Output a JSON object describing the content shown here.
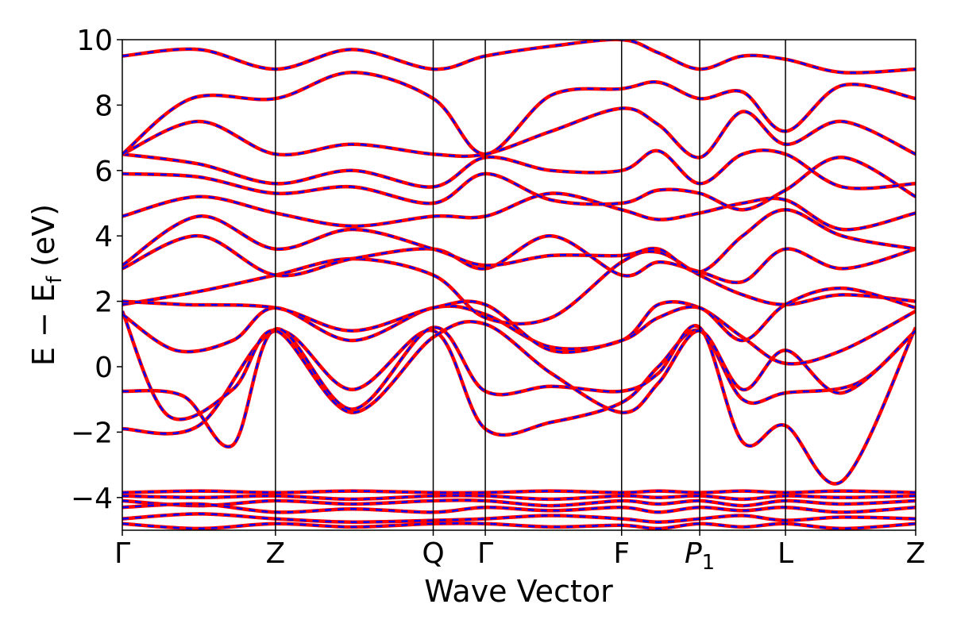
{
  "chart_data": {
    "type": "line",
    "title": "",
    "xlabel": "Wave Vector",
    "ylabel": "E − E_f (eV)",
    "ylabel_parts": {
      "main": "E − E",
      "sub": "f",
      "unit": " (eV)"
    },
    "ylim": [
      -5,
      10
    ],
    "yticks": [
      -4,
      -2,
      0,
      2,
      4,
      6,
      8,
      10
    ],
    "ytick_labels": [
      "−4",
      "−2",
      "0",
      "2",
      "4",
      "6",
      "8",
      "10"
    ],
    "grid": false,
    "legend": "none",
    "high_symmetry_points": [
      {
        "label": "Γ",
        "x": 0.0
      },
      {
        "label": "Z",
        "x": 1.0
      },
      {
        "label": "Q",
        "x": 2.03
      },
      {
        "label": "Γ",
        "x": 2.37
      },
      {
        "label": "F",
        "x": 3.26
      },
      {
        "label": "P1",
        "label_main": "P",
        "label_sub": "1",
        "x": 3.77
      },
      {
        "label": "L",
        "x": 4.33
      },
      {
        "label": "Z",
        "x": 5.18
      }
    ],
    "series_style": [
      {
        "color": "#ff0000",
        "stroke": "solid"
      },
      {
        "color": "#0000ff",
        "stroke": "dashed"
      }
    ],
    "bands": [
      [
        [
          0,
          -1.9
        ],
        [
          0.5,
          -1.8
        ],
        [
          1.0,
          1.1
        ],
        [
          1.5,
          -0.7
        ],
        [
          2.03,
          1.1
        ],
        [
          2.37,
          -1.9
        ],
        [
          2.8,
          -1.7
        ],
        [
          3.26,
          -1.1
        ],
        [
          3.5,
          0.0
        ],
        [
          3.77,
          1.1
        ],
        [
          4.05,
          -1.0
        ],
        [
          4.33,
          -0.8
        ],
        [
          4.8,
          -0.5
        ],
        [
          5.18,
          1.1
        ]
      ],
      [
        [
          0,
          -0.75
        ],
        [
          0.4,
          -0.9
        ],
        [
          0.72,
          -2.4
        ],
        [
          1.0,
          1.15
        ],
        [
          1.5,
          -1.3
        ],
        [
          2.03,
          1.2
        ],
        [
          2.37,
          -0.75
        ],
        [
          2.8,
          -0.6
        ],
        [
          3.26,
          -0.75
        ],
        [
          3.5,
          -0.2
        ],
        [
          3.77,
          1.2
        ],
        [
          4.05,
          -2.3
        ],
        [
          4.33,
          -1.8
        ],
        [
          4.7,
          -3.5
        ],
        [
          5.18,
          1.2
        ]
      ],
      [
        [
          0,
          1.7
        ],
        [
          0.3,
          -1.5
        ],
        [
          0.72,
          -0.7
        ],
        [
          1.0,
          1.1
        ],
        [
          1.5,
          -1.4
        ],
        [
          2.03,
          0.9
        ],
        [
          2.37,
          1.3
        ],
        [
          2.8,
          -0.2
        ],
        [
          3.26,
          -1.4
        ],
        [
          3.5,
          -0.5
        ],
        [
          3.77,
          1.1
        ],
        [
          4.05,
          -0.7
        ],
        [
          4.33,
          0.5
        ],
        [
          4.7,
          -0.8
        ],
        [
          5.18,
          1.1
        ]
      ],
      [
        [
          0,
          1.6
        ],
        [
          0.35,
          0.5
        ],
        [
          0.72,
          0.8
        ],
        [
          1.0,
          1.8
        ],
        [
          1.5,
          0.8
        ],
        [
          2.03,
          1.8
        ],
        [
          2.37,
          1.6
        ],
        [
          2.8,
          0.6
        ],
        [
          3.26,
          0.8
        ],
        [
          3.5,
          1.9
        ],
        [
          3.77,
          1.8
        ],
        [
          4.05,
          0.9
        ],
        [
          4.33,
          0.1
        ],
        [
          4.7,
          0.5
        ],
        [
          5.18,
          1.7
        ]
      ],
      [
        [
          0,
          1.9
        ],
        [
          0.5,
          2.3
        ],
        [
          1.0,
          2.8
        ],
        [
          1.5,
          3.3
        ],
        [
          2.03,
          2.8
        ],
        [
          2.37,
          1.5
        ],
        [
          2.8,
          1.5
        ],
        [
          3.26,
          3.2
        ],
        [
          3.5,
          3.5
        ],
        [
          3.77,
          2.8
        ],
        [
          4.05,
          2.2
        ],
        [
          4.33,
          1.9
        ],
        [
          4.7,
          2.2
        ],
        [
          5.18,
          2.0
        ]
      ],
      [
        [
          0,
          2.0
        ],
        [
          0.4,
          1.9
        ],
        [
          1.0,
          1.8
        ],
        [
          1.5,
          1.1
        ],
        [
          2.03,
          1.8
        ],
        [
          2.37,
          1.9
        ],
        [
          2.8,
          0.5
        ],
        [
          3.26,
          0.8
        ],
        [
          3.5,
          1.5
        ],
        [
          3.77,
          1.8
        ],
        [
          4.05,
          0.8
        ],
        [
          4.33,
          1.9
        ],
        [
          4.7,
          2.4
        ],
        [
          5.18,
          1.8
        ]
      ],
      [
        [
          0,
          3.0
        ],
        [
          0.5,
          4.0
        ],
        [
          1.0,
          2.8
        ],
        [
          1.5,
          3.3
        ],
        [
          2.03,
          3.6
        ],
        [
          2.37,
          3.0
        ],
        [
          2.8,
          4.0
        ],
        [
          3.26,
          2.8
        ],
        [
          3.5,
          3.2
        ],
        [
          3.77,
          2.9
        ],
        [
          4.05,
          2.6
        ],
        [
          4.33,
          3.6
        ],
        [
          4.7,
          3.0
        ],
        [
          5.18,
          3.6
        ]
      ],
      [
        [
          0,
          3.1
        ],
        [
          0.5,
          4.6
        ],
        [
          1.0,
          3.6
        ],
        [
          1.5,
          4.2
        ],
        [
          2.03,
          3.6
        ],
        [
          2.37,
          3.1
        ],
        [
          2.8,
          3.4
        ],
        [
          3.26,
          3.4
        ],
        [
          3.5,
          3.6
        ],
        [
          3.77,
          2.9
        ],
        [
          4.05,
          4.0
        ],
        [
          4.33,
          4.8
        ],
        [
          4.7,
          4.0
        ],
        [
          5.18,
          3.6
        ]
      ],
      [
        [
          0,
          4.6
        ],
        [
          0.5,
          5.2
        ],
        [
          1.0,
          4.7
        ],
        [
          1.5,
          4.3
        ],
        [
          2.03,
          4.6
        ],
        [
          2.37,
          4.6
        ],
        [
          2.8,
          5.3
        ],
        [
          3.26,
          4.8
        ],
        [
          3.5,
          4.5
        ],
        [
          3.77,
          4.7
        ],
        [
          4.05,
          5.0
        ],
        [
          4.33,
          5.1
        ],
        [
          4.7,
          4.2
        ],
        [
          5.18,
          4.7
        ]
      ],
      [
        [
          0,
          5.9
        ],
        [
          0.5,
          5.8
        ],
        [
          1.0,
          5.3
        ],
        [
          1.5,
          5.5
        ],
        [
          2.03,
          5.0
        ],
        [
          2.37,
          5.9
        ],
        [
          2.8,
          5.1
        ],
        [
          3.26,
          5.0
        ],
        [
          3.5,
          5.4
        ],
        [
          3.77,
          5.3
        ],
        [
          4.05,
          4.8
        ],
        [
          4.33,
          5.4
        ],
        [
          4.7,
          6.4
        ],
        [
          5.18,
          5.2
        ]
      ],
      [
        [
          0,
          6.5
        ],
        [
          0.5,
          6.2
        ],
        [
          1.0,
          5.6
        ],
        [
          1.5,
          6.0
        ],
        [
          2.03,
          5.5
        ],
        [
          2.37,
          6.4
        ],
        [
          2.8,
          6.0
        ],
        [
          3.26,
          6.0
        ],
        [
          3.5,
          6.6
        ],
        [
          3.77,
          5.6
        ],
        [
          4.05,
          6.5
        ],
        [
          4.33,
          6.5
        ],
        [
          4.7,
          5.5
        ],
        [
          5.18,
          5.6
        ]
      ],
      [
        [
          0,
          6.5
        ],
        [
          0.5,
          7.5
        ],
        [
          1.0,
          6.5
        ],
        [
          1.5,
          6.8
        ],
        [
          2.03,
          6.5
        ],
        [
          2.37,
          6.5
        ],
        [
          2.8,
          7.2
        ],
        [
          3.26,
          7.9
        ],
        [
          3.5,
          7.4
        ],
        [
          3.77,
          6.4
        ],
        [
          4.05,
          7.8
        ],
        [
          4.33,
          6.8
        ],
        [
          4.7,
          7.5
        ],
        [
          5.18,
          6.5
        ]
      ],
      [
        [
          0,
          6.5
        ],
        [
          0.45,
          8.2
        ],
        [
          1.0,
          8.2
        ],
        [
          1.5,
          9.0
        ],
        [
          2.03,
          8.2
        ],
        [
          2.37,
          6.5
        ],
        [
          2.8,
          8.3
        ],
        [
          3.26,
          8.5
        ],
        [
          3.5,
          8.7
        ],
        [
          3.77,
          8.2
        ],
        [
          4.05,
          8.4
        ],
        [
          4.33,
          7.2
        ],
        [
          4.7,
          8.6
        ],
        [
          5.18,
          8.2
        ]
      ],
      [
        [
          0,
          9.5
        ],
        [
          0.5,
          9.7
        ],
        [
          1.0,
          9.1
        ],
        [
          1.5,
          9.7
        ],
        [
          2.03,
          9.1
        ],
        [
          2.37,
          9.5
        ],
        [
          2.8,
          9.8
        ],
        [
          3.26,
          10.0
        ],
        [
          3.5,
          9.6
        ],
        [
          3.77,
          9.1
        ],
        [
          4.05,
          9.5
        ],
        [
          4.33,
          9.4
        ],
        [
          4.7,
          9.0
        ],
        [
          5.18,
          9.1
        ]
      ],
      [
        [
          0,
          -3.85
        ],
        [
          0.5,
          -3.8
        ],
        [
          1.0,
          -3.85
        ],
        [
          1.5,
          -3.8
        ],
        [
          2.03,
          -3.85
        ],
        [
          2.37,
          -3.85
        ],
        [
          2.8,
          -3.8
        ],
        [
          3.26,
          -3.85
        ],
        [
          3.5,
          -3.8
        ],
        [
          3.77,
          -3.85
        ],
        [
          4.05,
          -3.8
        ],
        [
          4.33,
          -3.85
        ],
        [
          4.7,
          -3.8
        ],
        [
          5.18,
          -3.85
        ]
      ],
      [
        [
          0,
          -3.95
        ],
        [
          0.5,
          -4.0
        ],
        [
          1.0,
          -3.95
        ],
        [
          1.5,
          -4.05
        ],
        [
          2.03,
          -3.95
        ],
        [
          2.37,
          -3.95
        ],
        [
          2.8,
          -4.05
        ],
        [
          3.26,
          -3.95
        ],
        [
          3.5,
          -4.0
        ],
        [
          3.77,
          -3.95
        ],
        [
          4.05,
          -4.05
        ],
        [
          4.33,
          -3.95
        ],
        [
          4.7,
          -4.0
        ],
        [
          5.18,
          -3.95
        ]
      ],
      [
        [
          0,
          -4.1
        ],
        [
          0.5,
          -4.25
        ],
        [
          1.0,
          -4.1
        ],
        [
          1.5,
          -4.2
        ],
        [
          2.03,
          -4.1
        ],
        [
          2.37,
          -4.1
        ],
        [
          2.8,
          -4.25
        ],
        [
          3.26,
          -4.1
        ],
        [
          3.5,
          -4.2
        ],
        [
          3.77,
          -4.1
        ],
        [
          4.05,
          -4.25
        ],
        [
          4.33,
          -4.1
        ],
        [
          4.7,
          -4.2
        ],
        [
          5.18,
          -4.1
        ]
      ],
      [
        [
          0,
          -4.3
        ],
        [
          0.5,
          -4.2
        ],
        [
          1.0,
          -4.45
        ],
        [
          1.5,
          -4.35
        ],
        [
          2.03,
          -4.45
        ],
        [
          2.37,
          -4.3
        ],
        [
          2.8,
          -4.4
        ],
        [
          3.26,
          -4.3
        ],
        [
          3.5,
          -4.45
        ],
        [
          3.77,
          -4.3
        ],
        [
          4.05,
          -4.4
        ],
        [
          4.33,
          -4.3
        ],
        [
          4.7,
          -4.45
        ],
        [
          5.18,
          -4.3
        ]
      ],
      [
        [
          0,
          -4.65
        ],
        [
          0.5,
          -4.5
        ],
        [
          1.0,
          -4.65
        ],
        [
          1.5,
          -4.75
        ],
        [
          2.03,
          -4.7
        ],
        [
          2.37,
          -4.65
        ],
        [
          2.8,
          -4.55
        ],
        [
          3.26,
          -4.65
        ],
        [
          3.5,
          -4.75
        ],
        [
          3.77,
          -4.65
        ],
        [
          4.05,
          -4.55
        ],
        [
          4.33,
          -4.7
        ],
        [
          4.7,
          -4.6
        ],
        [
          5.18,
          -4.65
        ]
      ],
      [
        [
          0,
          -4.8
        ],
        [
          0.5,
          -4.95
        ],
        [
          1.0,
          -4.8
        ],
        [
          1.5,
          -4.9
        ],
        [
          2.03,
          -4.8
        ],
        [
          2.37,
          -4.8
        ],
        [
          2.8,
          -4.9
        ],
        [
          3.26,
          -4.85
        ],
        [
          3.5,
          -4.95
        ],
        [
          3.77,
          -4.8
        ],
        [
          4.05,
          -4.9
        ],
        [
          4.33,
          -4.8
        ],
        [
          4.7,
          -4.95
        ],
        [
          5.18,
          -4.8
        ]
      ]
    ]
  }
}
